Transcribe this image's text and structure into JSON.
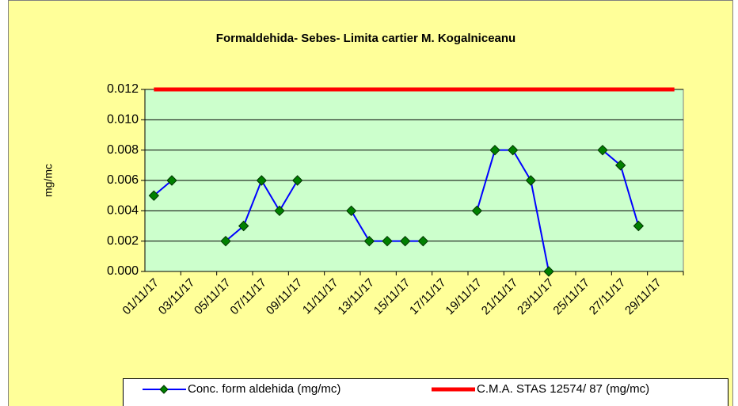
{
  "chart_data": {
    "type": "line",
    "title": "Formaldehida- Sebes- Limita cartier M. Kogalniceanu",
    "y_label": "mg/mc",
    "categories": [
      "01/11/17",
      null,
      "03/11/17",
      null,
      "05/11/17",
      null,
      "07/11/17",
      null,
      "09/11/17",
      null,
      "11/11/17",
      null,
      "13/11/17",
      null,
      "15/11/17",
      null,
      "17/11/17",
      null,
      "19/11/17",
      null,
      "21/11/17",
      null,
      "23/11/17",
      null,
      "25/11/17",
      null,
      "27/11/17",
      null,
      "29/11/17",
      null
    ],
    "series": [
      {
        "name": "Conc. form aldehida  (mg/mc)",
        "color": "#0000ff",
        "marker_color": "#008000",
        "values": [
          0.005,
          0.006,
          null,
          null,
          0.002,
          0.003,
          0.006,
          0.004,
          0.006,
          null,
          null,
          0.004,
          0.002,
          0.002,
          0.002,
          0.002,
          null,
          null,
          0.004,
          0.008,
          0.008,
          0.006,
          0.0,
          null,
          null,
          0.008,
          0.007,
          0.003,
          null,
          null
        ]
      },
      {
        "name": "C.M.A. STAS 12574/ 87 (mg/mc)",
        "color": "#ff0000",
        "values": [
          0.012,
          0.012,
          0.012,
          0.012,
          0.012,
          0.012,
          0.012,
          0.012,
          0.012,
          0.012,
          0.012,
          0.012,
          0.012,
          0.012,
          0.012,
          0.012,
          0.012,
          0.012,
          0.012,
          0.012,
          0.012,
          0.012,
          0.012,
          0.012,
          0.012,
          0.012,
          0.012,
          0.012,
          0.012,
          0.012
        ]
      }
    ],
    "ylim": [
      0,
      0.012
    ],
    "yticks": [
      {
        "value": 0,
        "label": "0.000"
      },
      0.002,
      0.004,
      0.006,
      0.008,
      {
        "value": 0.01,
        "label": "0.010"
      },
      0.012
    ],
    "grid": true,
    "legend": "bottom"
  }
}
